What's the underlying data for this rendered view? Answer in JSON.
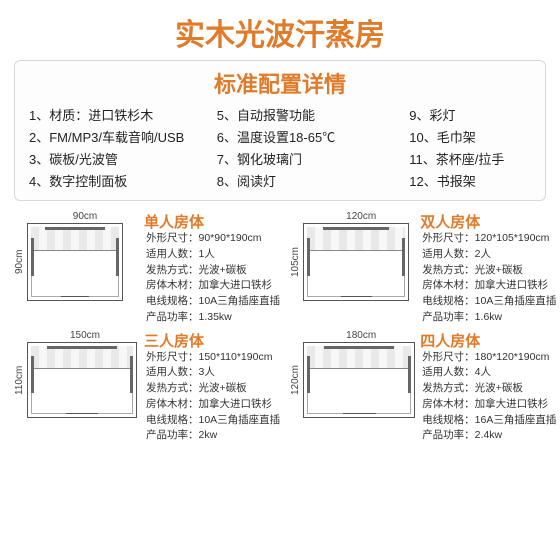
{
  "title_color": "#e07b2a",
  "config_title_color": "#e07b2a",
  "room_title_color": "#e07b2a",
  "main_title": "实木光波汗蒸房",
  "config_title": "标准配置详情",
  "features": [
    "1、材质：进口铁杉木",
    "5、自动报警功能",
    "9、彩灯",
    "2、FM/MP3/车载音响/USB",
    "6、温度设置18-65℃",
    "10、毛巾架",
    "3、碳板/光波管",
    "7、钢化玻璃门",
    "11、茶杯座/拉手",
    "4、数字控制面板",
    "8、阅读灯",
    "12、书报架"
  ],
  "labels": {
    "dims": "外形尺寸",
    "capacity": "适用人数",
    "heating": "发热方式",
    "material": "房体木材",
    "wire": "电线规格",
    "power": "产品功率"
  },
  "rooms": [
    {
      "title": "单人房体",
      "w_label": "90cm",
      "h_label": "90cm",
      "plan_w": 96,
      "plan_h": 78,
      "dims": "90*90*190cm",
      "capacity": "1人",
      "heating": "光波+碳板",
      "material": "加拿大进口铁杉",
      "wire": "10A三角插座直插",
      "power": "1.35kw"
    },
    {
      "title": "双人房体",
      "w_label": "120cm",
      "h_label": "105cm",
      "plan_w": 106,
      "plan_h": 78,
      "dims": "120*105*190cm",
      "capacity": "2人",
      "heating": "光波+碳板",
      "material": "加拿大进口铁杉",
      "wire": "10A三角插座直插",
      "power": "1.6kw"
    },
    {
      "title": "三人房体",
      "w_label": "150cm",
      "h_label": "110cm",
      "plan_w": 110,
      "plan_h": 76,
      "dims": "150*110*190cm",
      "capacity": "3人",
      "heating": "光波+碳板",
      "material": "加拿大进口铁杉",
      "wire": "10A三角插座直插",
      "power": "2kw"
    },
    {
      "title": "四人房体",
      "w_label": "180cm",
      "h_label": "120cm",
      "plan_w": 112,
      "plan_h": 76,
      "dims": "180*120*190cm",
      "capacity": "4人",
      "heating": "光波+碳板",
      "material": "加拿大进口铁杉",
      "wire": "16A三角插座直插",
      "power": "2.4kw"
    }
  ]
}
